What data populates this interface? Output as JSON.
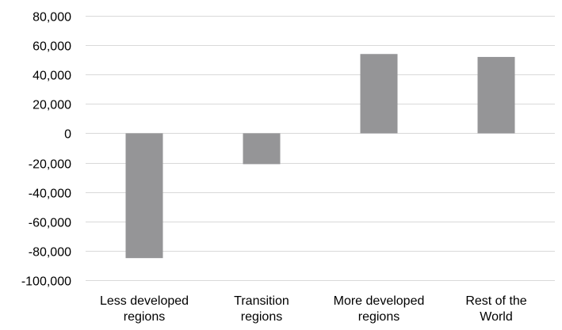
{
  "chart_data": {
    "type": "bar",
    "title": "",
    "xlabel": "",
    "ylabel": "",
    "categories": [
      [
        "Less developed",
        "regions"
      ],
      [
        "Transition",
        "regions"
      ],
      [
        "More developed",
        "regions"
      ],
      [
        "Rest of the",
        "World"
      ]
    ],
    "values": [
      -85000,
      -21000,
      54000,
      52000
    ],
    "ylim": [
      -100000,
      80000
    ],
    "yticks": [
      80000,
      60000,
      40000,
      20000,
      0,
      -20000,
      -40000,
      -60000,
      -80000,
      -100000
    ],
    "ytick_labels": [
      "80,000",
      "60,000",
      "40,000",
      "20,000",
      "0",
      "-20,000",
      "-40,000",
      "-60,000",
      "-80,000",
      "-100,000"
    ],
    "grid": true,
    "legend": "none",
    "colors": {
      "bar": "#959597",
      "grid": "#d9d9d9",
      "text": "#000000"
    }
  }
}
